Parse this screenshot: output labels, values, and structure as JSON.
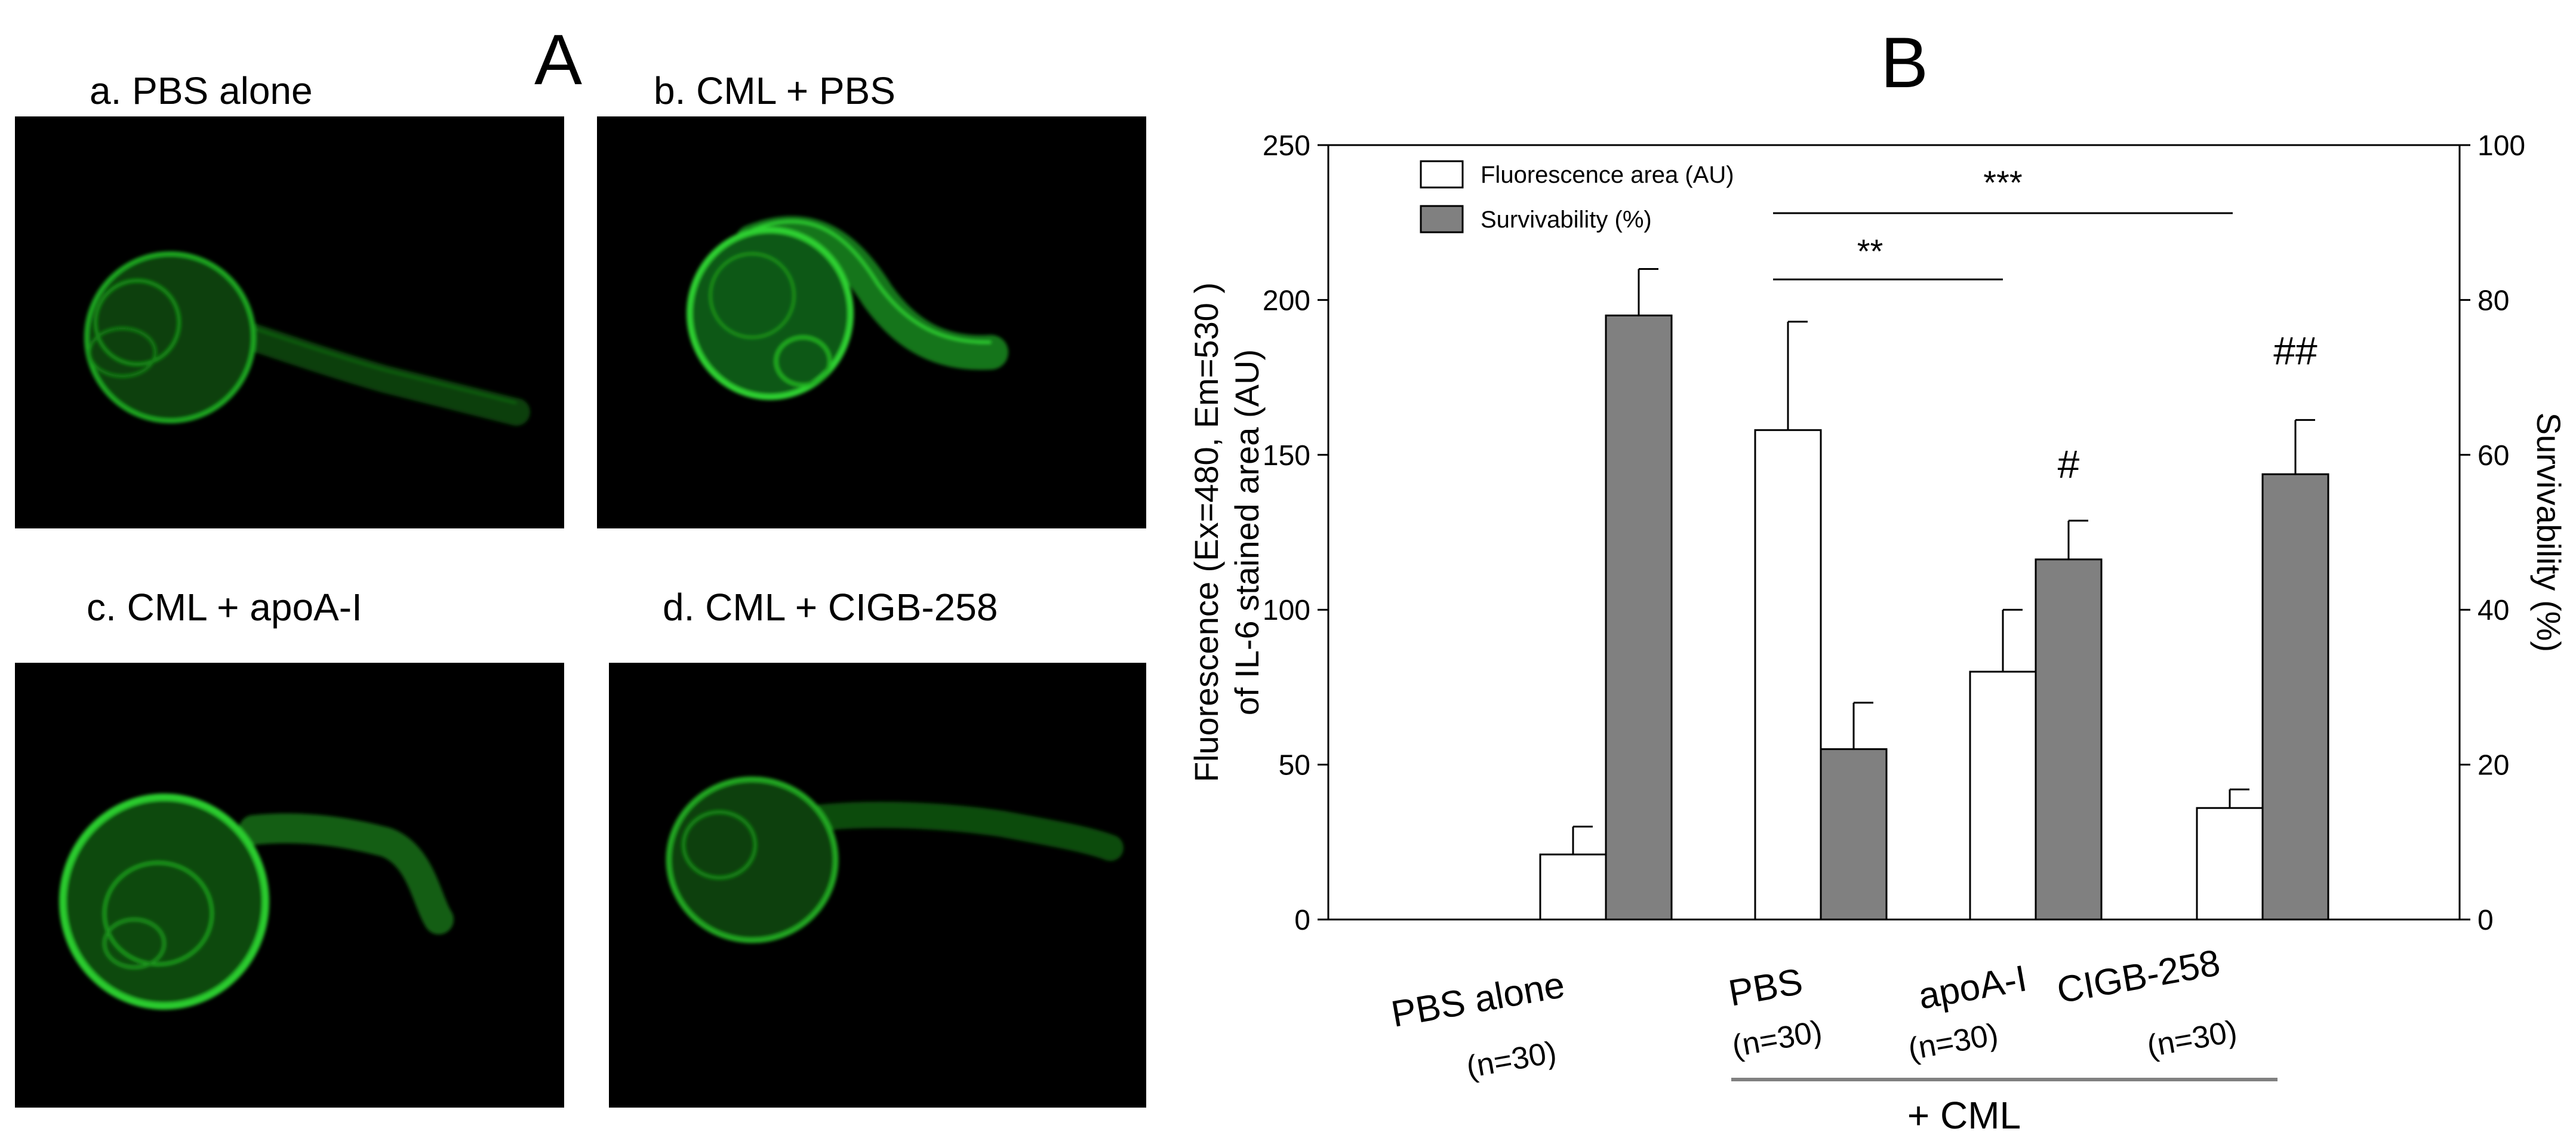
{
  "panel_a": {
    "letter": "A",
    "images": [
      {
        "caption": "a. PBS alone"
      },
      {
        "caption": "b. CML + PBS"
      },
      {
        "caption": "c. CML + apoA-I"
      },
      {
        "caption": "d. CML + CIGB-258"
      }
    ]
  },
  "panel_b": {
    "letter": "B"
  },
  "colors": {
    "fluorescence_green": "#22c322",
    "bar_gray": "#808080",
    "bar_white": "#ffffff"
  },
  "chart_data": {
    "type": "bar",
    "categories": [
      "PBS alone",
      "PBS",
      "apoA-I",
      "CIGB-258"
    ],
    "category_n": [
      "(n=30)",
      "(n=30)",
      "(n=30)",
      "(n=30)"
    ],
    "group_label": "+ CML",
    "series": [
      {
        "name": "Fluorescence area (AU)",
        "axis": "left",
        "values": [
          21,
          158,
          80,
          36
        ],
        "errors": [
          9,
          35,
          20,
          6
        ]
      },
      {
        "name": "Survivability  (%)",
        "axis": "right",
        "values": [
          78,
          22,
          46.5,
          57.5
        ],
        "errors": [
          6,
          6,
          5,
          7
        ]
      }
    ],
    "ylabel_left_line1": "Fluorescence (Ex=480, Em=530 )",
    "ylabel_left_line2": "of IL-6 stained area (AU)",
    "ylabel_right": "Survivability (%)",
    "ylim_left": [
      0,
      250
    ],
    "yticks_left": [
      "0",
      "50",
      "100",
      "150",
      "200",
      "250"
    ],
    "ylim_right": [
      0,
      100
    ],
    "yticks_right": [
      "0",
      "20",
      "40",
      "60",
      "80",
      "100"
    ],
    "significance": [
      {
        "label": "**",
        "from": "PBS",
        "to": "apoA-I"
      },
      {
        "label": "***",
        "from": "PBS",
        "to": "CIGB-258"
      }
    ],
    "markers": [
      {
        "label": "#",
        "category": "apoA-I"
      },
      {
        "label": "##",
        "category": "CIGB-258"
      }
    ],
    "legend": "top-left",
    "grid": false
  }
}
